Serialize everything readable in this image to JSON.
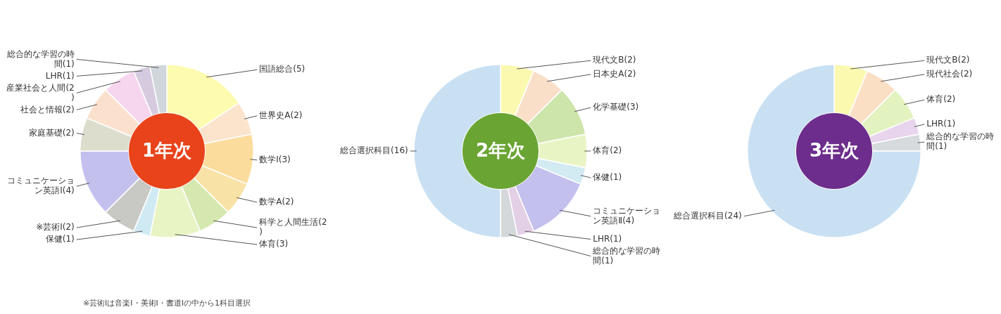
{
  "chart_data": [
    {
      "type": "donut",
      "title": "1年次",
      "categories": [
        "国語総合(5)",
        "世界史A(2)",
        "数学Ⅰ(3)",
        "数学A(2)",
        "科学と人間生活(2)",
        "体育(3)",
        "保健(1)",
        "※芸術Ⅰ(2)",
        "コミュニケーション英語Ⅰ(4)",
        "家庭基礎(2)",
        "社会と情報(2)",
        "産業社会と人間(2)",
        "LHR(1)",
        "総合的な学習の時間(1)"
      ],
      "values": [
        5,
        2,
        3,
        2,
        2,
        3,
        1,
        2,
        4,
        2,
        2,
        2,
        1,
        1
      ],
      "colors": [
        "#fdfbb0",
        "#fbe3cc",
        "#fbdc9c",
        "#f8e2a6",
        "#d5e8b0",
        "#e9f4c4",
        "#cfeaf2",
        "#c8c8c4",
        "#c3c0ee",
        "#ddddce",
        "#fbe1cd",
        "#f6d6ee",
        "#d6cadf",
        "#d0d6dc"
      ],
      "annotations": [
        "※芸術Ⅰは音楽Ⅰ・美術Ⅰ・書道Ⅰの中から1科目選択"
      ]
    },
    {
      "type": "donut",
      "title": "2年次",
      "categories": [
        "現代文B(2)",
        "日本史A(2)",
        "化学基礎(3)",
        "体育(2)",
        "保健(1)",
        "コミュニケーション英語Ⅱ(4)",
        "LHR(1)",
        "総合的な学習の時間(1)",
        "総合選択科目(16)"
      ],
      "values": [
        2,
        2,
        3,
        2,
        1,
        4,
        1,
        1,
        16
      ],
      "colors": [
        "#fbf9b0",
        "#fadfc8",
        "#cde5aa",
        "#e9f4c4",
        "#d2eaf2",
        "#c3c0ee",
        "#e3cfe6",
        "#d4d8da",
        "#c9e0f3"
      ]
    },
    {
      "type": "donut",
      "title": "3年次",
      "categories": [
        "現代文B(2)",
        "現代社会(2)",
        "体育(2)",
        "LHR(1)",
        "総合的な学習の時間(1)",
        "総合選択科目(24)"
      ],
      "values": [
        2,
        2,
        2,
        1,
        1,
        24
      ],
      "colors": [
        "#fbf9b0",
        "#fbdfc4",
        "#e2f3c0",
        "#e8d4ec",
        "#d6dadd",
        "#c9e0f3"
      ]
    }
  ]
}
